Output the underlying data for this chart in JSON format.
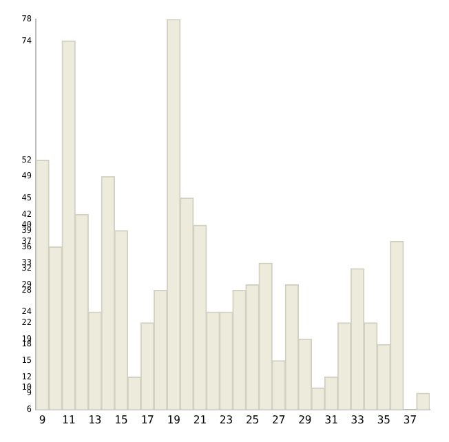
{
  "chart_data": {
    "type": "bar",
    "categories": [
      "9",
      null,
      "11",
      null,
      "13",
      null,
      "15",
      null,
      "17",
      null,
      "19",
      null,
      "21",
      null,
      "23",
      null,
      "25",
      null,
      "27",
      null,
      "29",
      null,
      "31",
      null,
      "33",
      null,
      "35",
      null,
      "37",
      null
    ],
    "values": [
      52,
      36,
      74,
      42,
      24,
      49,
      39,
      12,
      22,
      28,
      78,
      45,
      40,
      24,
      24,
      28,
      29,
      33,
      15,
      29,
      19,
      10,
      12,
      22,
      32,
      22,
      18,
      37,
      6,
      9
    ],
    "color": "#ecebdc",
    "ylim": [
      6,
      78
    ],
    "yticks": [
      6,
      9,
      10,
      12,
      15,
      18,
      19,
      22,
      24,
      28,
      29,
      32,
      33,
      36,
      37,
      39,
      40,
      42,
      45,
      49,
      52,
      74,
      78
    ],
    "grid": false,
    "legend": false
  }
}
